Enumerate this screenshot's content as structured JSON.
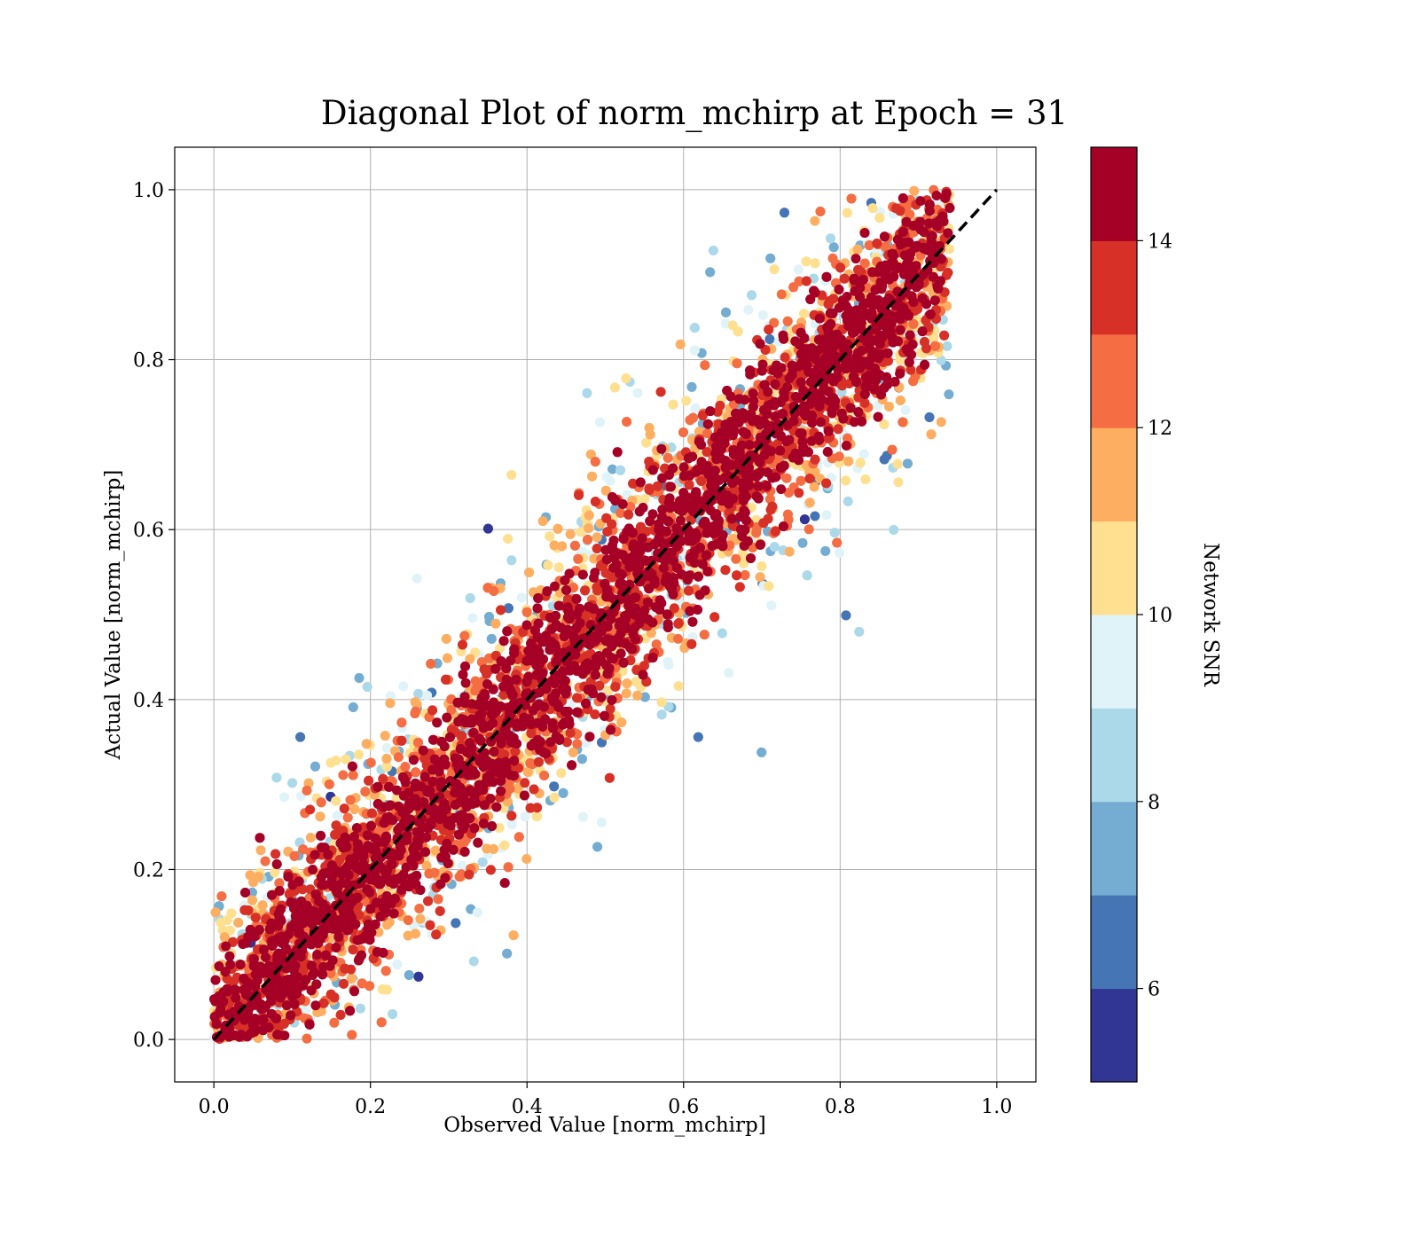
{
  "chart_data": {
    "type": "scatter",
    "title": "Diagonal Plot of norm_mchirp at Epoch = 31",
    "xlabel": "Observed Value [norm_mchirp]",
    "ylabel": "Actual Value [norm_mchirp]",
    "xlim": [
      -0.05,
      1.05
    ],
    "ylim": [
      -0.05,
      1.05
    ],
    "x_ticks": [
      0.0,
      0.2,
      0.4,
      0.6,
      0.8,
      1.0
    ],
    "y_ticks": [
      0.0,
      0.2,
      0.4,
      0.6,
      0.8,
      1.0
    ],
    "x_tick_labels": [
      "0.0",
      "0.2",
      "0.4",
      "0.6",
      "0.8",
      "1.0"
    ],
    "y_tick_labels": [
      "0.0",
      "0.2",
      "0.4",
      "0.6",
      "0.8",
      "1.0"
    ],
    "grid": true,
    "reference_line": {
      "x": [
        0.0,
        1.0
      ],
      "y": [
        0.0,
        1.0
      ],
      "style": "dashed",
      "color": "#000000"
    },
    "point_cloud": {
      "description_of_distribution": "points concentrated along y=x; high-SNR points near diagonal, low-SNR points spread widely",
      "x_range": [
        0.0,
        0.94
      ],
      "y_range": [
        0.0,
        1.0
      ],
      "high_snr_spread": 0.08,
      "low_snr_spread": 0.35
    },
    "colorbar": {
      "label": "Network SNR",
      "range": [
        5,
        15
      ],
      "ticks": [
        6,
        8,
        10,
        12,
        14
      ],
      "tick_labels": [
        "6",
        "8",
        "10",
        "12",
        "14"
      ],
      "colors": [
        "#313695",
        "#4575b4",
        "#74add1",
        "#abd9e9",
        "#e0f3f8",
        "#fee090",
        "#fdae61",
        "#f46d43",
        "#d73027",
        "#a50026"
      ]
    }
  }
}
